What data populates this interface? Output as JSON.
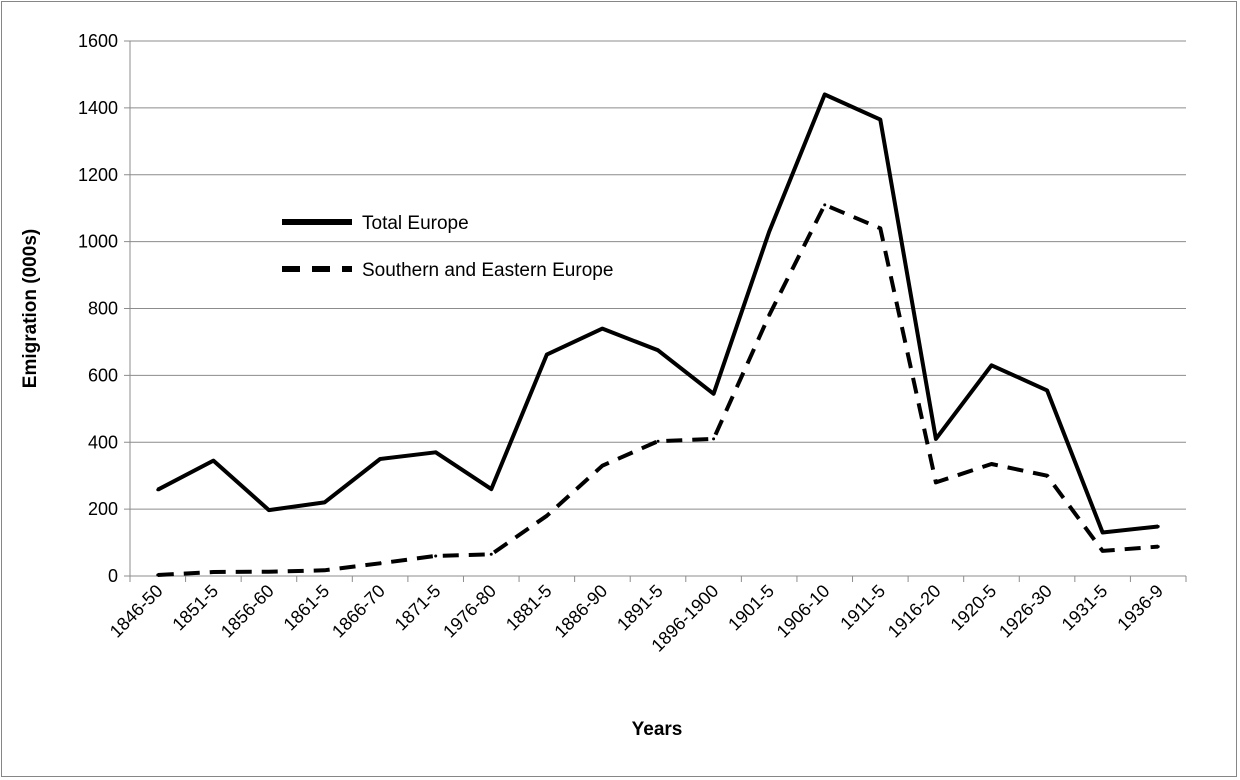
{
  "chart_data": {
    "type": "line",
    "title": "",
    "xlabel": "Years",
    "ylabel": "Emigration (000s)",
    "ylim": [
      0,
      1600
    ],
    "yticks": [
      0,
      200,
      400,
      600,
      800,
      1000,
      1200,
      1400,
      1600
    ],
    "grid": "horizontal",
    "legend": "upper-left inside plot",
    "categories": [
      "1846-50",
      "1851-5",
      "1856-60",
      "1861-5",
      "1866-70",
      "1871-5",
      "1976-80",
      "1881-5",
      "1886-90",
      "1891-5",
      "1896-1900",
      "1901-5",
      "1906-10",
      "1911-5",
      "1916-20",
      "1920-5",
      "1926-30",
      "1931-5",
      "1936-9"
    ],
    "series": [
      {
        "name": "Total Europe",
        "style": "solid",
        "color": "#000000",
        "values": [
          258,
          345,
          197,
          220,
          350,
          370,
          260,
          662,
          740,
          675,
          545,
          1030,
          1440,
          1365,
          410,
          630,
          555,
          130,
          148
        ]
      },
      {
        "name": "Southern and Eastern Europe",
        "style": "dashed",
        "color": "#000000",
        "values": [
          3,
          12,
          13,
          17,
          38,
          60,
          65,
          180,
          330,
          403,
          410,
          780,
          1110,
          1040,
          280,
          335,
          300,
          75,
          88
        ]
      }
    ]
  }
}
